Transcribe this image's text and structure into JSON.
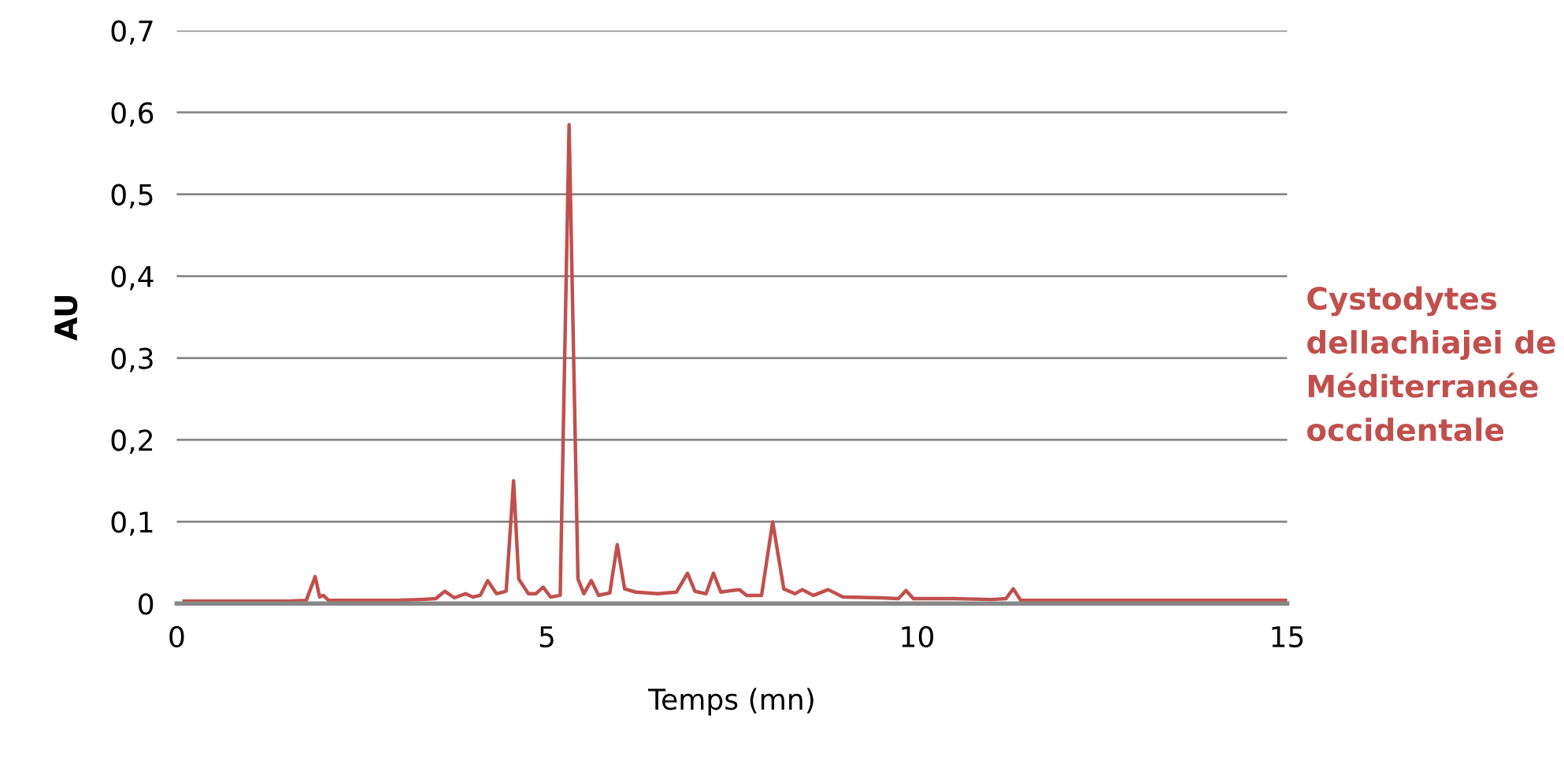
{
  "chart_data": {
    "type": "line",
    "xlabel": "Temps (mn)",
    "ylabel": "AU",
    "xlim": [
      0,
      15
    ],
    "ylim": [
      0,
      0.7
    ],
    "xticks": [
      0,
      5,
      10,
      15
    ],
    "yticks": [
      {
        "value": 0,
        "label": "0"
      },
      {
        "value": 0.1,
        "label": "0,1"
      },
      {
        "value": 0.2,
        "label": "0,2"
      },
      {
        "value": 0.3,
        "label": "0,3"
      },
      {
        "value": 0.4,
        "label": "0,4"
      },
      {
        "value": 0.5,
        "label": "0,5"
      },
      {
        "value": 0.6,
        "label": "0,6"
      },
      {
        "value": 0.7,
        "label": "0,7"
      }
    ],
    "grid": "y",
    "legend": "right",
    "marker": "none",
    "line_style": "solid",
    "series": [
      {
        "name": "Cystodytes dellachiajei de Méditerranée occidentale",
        "color": "#c0504d",
        "x": [
          0.1,
          0.5,
          1.0,
          1.5,
          1.75,
          1.87,
          1.93,
          1.98,
          2.05,
          2.5,
          3.0,
          3.3,
          3.5,
          3.62,
          3.75,
          3.9,
          4.0,
          4.1,
          4.2,
          4.32,
          4.45,
          4.55,
          4.62,
          4.75,
          4.85,
          4.95,
          5.05,
          5.18,
          5.3,
          5.42,
          5.5,
          5.6,
          5.7,
          5.85,
          5.95,
          6.05,
          6.2,
          6.5,
          6.75,
          6.9,
          7.0,
          7.15,
          7.25,
          7.35,
          7.5,
          7.6,
          7.7,
          7.9,
          8.05,
          8.2,
          8.35,
          8.45,
          8.6,
          8.8,
          9.0,
          9.5,
          9.75,
          9.85,
          9.95,
          10.5,
          11.0,
          11.2,
          11.3,
          11.4,
          12.0,
          13.0,
          14.0,
          15.0
        ],
        "values": [
          0.003,
          0.003,
          0.003,
          0.003,
          0.004,
          0.033,
          0.008,
          0.01,
          0.004,
          0.004,
          0.004,
          0.005,
          0.006,
          0.015,
          0.007,
          0.012,
          0.008,
          0.01,
          0.028,
          0.012,
          0.015,
          0.15,
          0.03,
          0.012,
          0.012,
          0.02,
          0.008,
          0.01,
          0.585,
          0.03,
          0.012,
          0.028,
          0.01,
          0.013,
          0.072,
          0.018,
          0.014,
          0.012,
          0.014,
          0.037,
          0.015,
          0.012,
          0.037,
          0.014,
          0.016,
          0.017,
          0.01,
          0.01,
          0.1,
          0.018,
          0.012,
          0.017,
          0.01,
          0.017,
          0.008,
          0.007,
          0.006,
          0.016,
          0.006,
          0.006,
          0.005,
          0.006,
          0.018,
          0.004,
          0.004,
          0.004,
          0.004,
          0.004
        ]
      }
    ]
  }
}
